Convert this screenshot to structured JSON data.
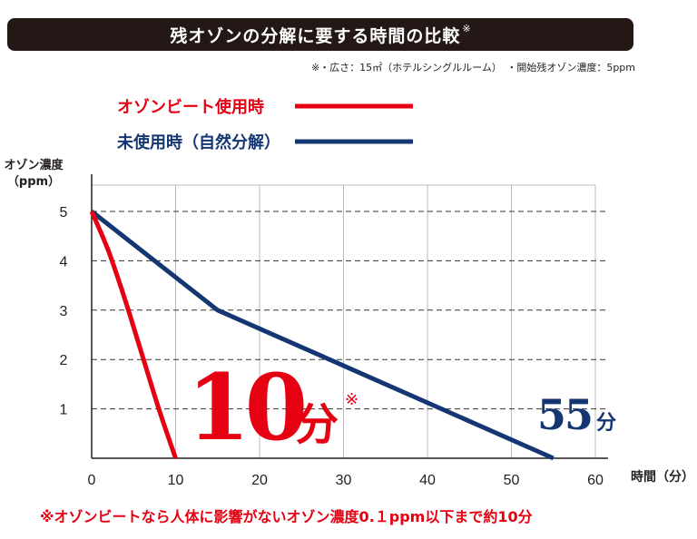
{
  "title": {
    "text": "残オゾンの分解に要する時間の比較",
    "mark": "※"
  },
  "conditions_note": "※・広さ：15㎡（ホテルシングルルーム）　・開始残オゾン濃度：5ppm",
  "footnote": "※オゾンビートなら人体に影響がないオゾン濃度0.１ppm以下まで約10分",
  "callouts": {
    "with_device": {
      "number": "10",
      "unit": "分",
      "mark": "※"
    },
    "without_device": {
      "number": "55",
      "unit": "分"
    }
  },
  "colors": {
    "with_device": "#e50012",
    "without_device": "#143774",
    "title_bg": "#231815",
    "grid": "#bbbbbb"
  },
  "chart_data": {
    "type": "line",
    "ylabel": "オゾン濃度\n（ppm）",
    "xlabel": "時間（分）",
    "xlim": [
      0,
      60
    ],
    "ylim": [
      0,
      5
    ],
    "x_ticks": [
      0,
      10,
      20,
      30,
      40,
      50,
      60
    ],
    "y_ticks": [
      1,
      2,
      3,
      4,
      5
    ],
    "legend_position": "top-left",
    "series": [
      {
        "name": "オゾンビート使用時",
        "color": "#e50012",
        "x": [
          0,
          2,
          4,
          6,
          8,
          10
        ],
        "y": [
          5,
          4.2,
          3.2,
          2.1,
          1.0,
          0
        ]
      },
      {
        "name": "未使用時（自然分解）",
        "color": "#143774",
        "x": [
          0,
          15,
          55
        ],
        "y": [
          5,
          3,
          0
        ]
      }
    ]
  }
}
